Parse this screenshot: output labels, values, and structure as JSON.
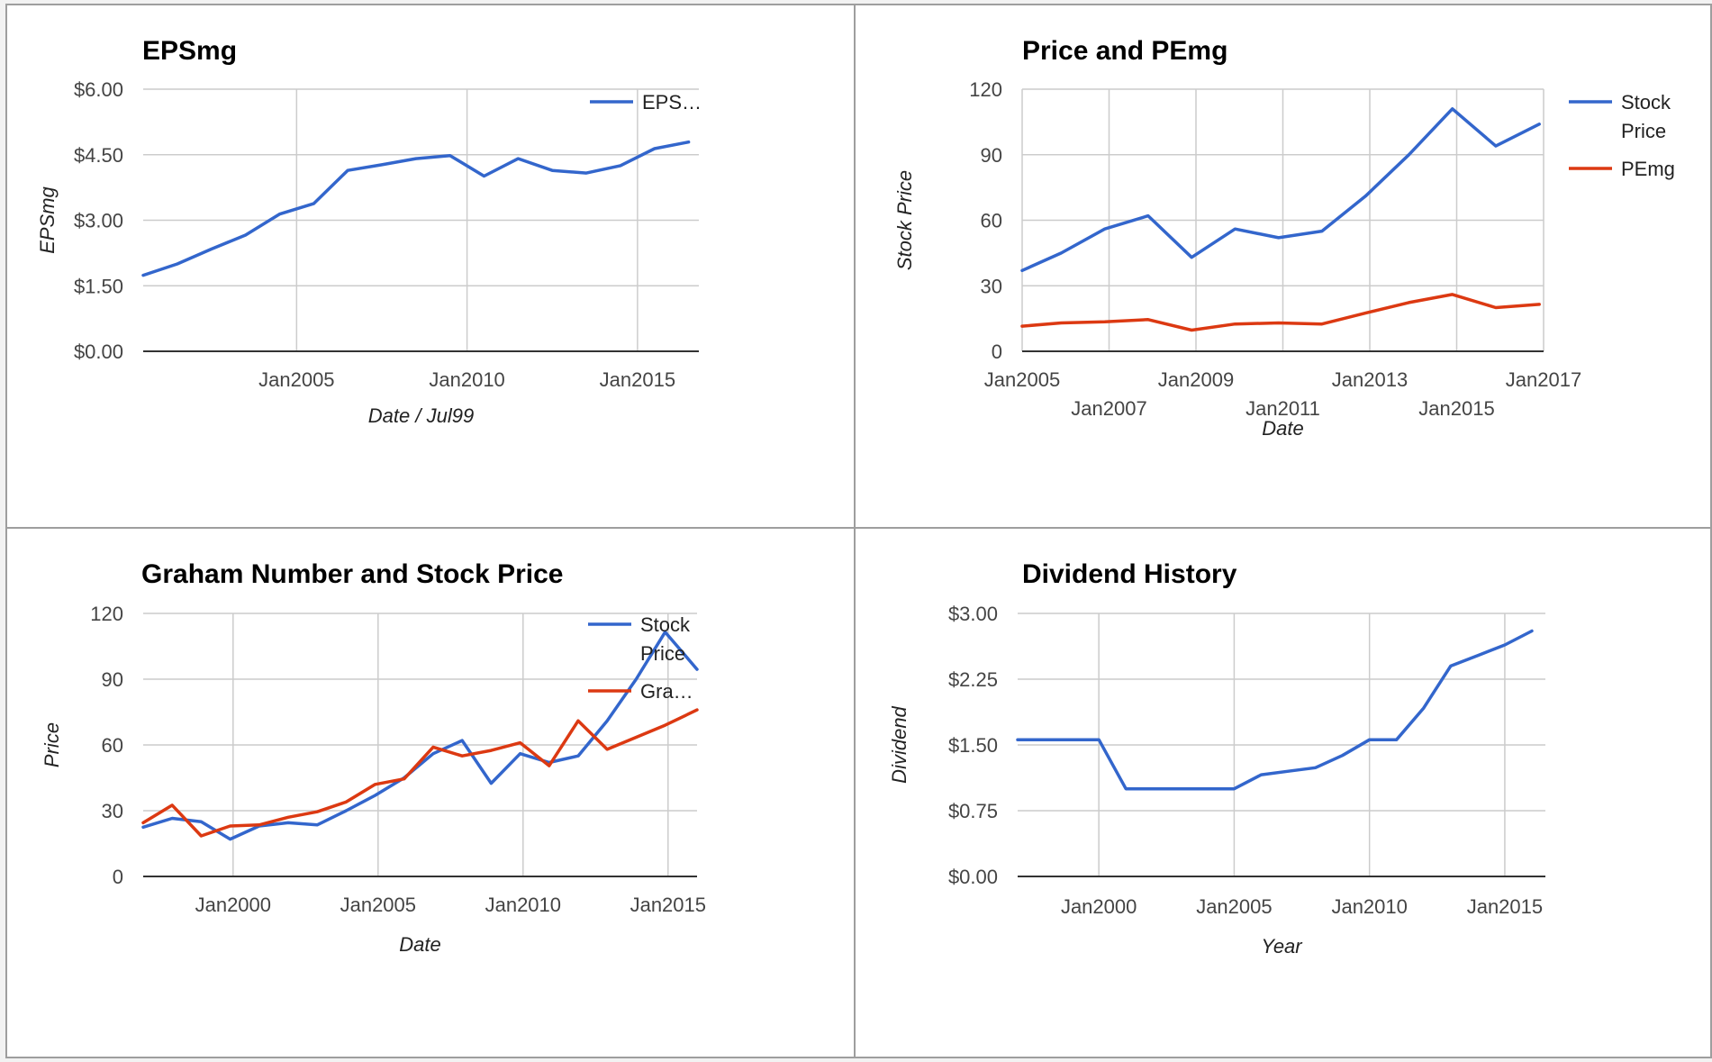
{
  "colors": {
    "blue": "#3366cc",
    "red": "#dc3912"
  },
  "chart_data": [
    {
      "type": "line",
      "title": "EPSmg",
      "xlabel": "Date / Jul99",
      "ylabel": "EPSmg",
      "xlim": [
        2000.5,
        2016.8
      ],
      "ylim": [
        0,
        6
      ],
      "x_ticks": [
        {
          "v": 2005,
          "label": "Jan2005"
        },
        {
          "v": 2010,
          "label": "Jan2010"
        },
        {
          "v": 2015,
          "label": "Jan2015"
        }
      ],
      "y_ticks": [
        {
          "v": 0,
          "label": "$0.00"
        },
        {
          "v": 1.5,
          "label": "$1.50"
        },
        {
          "v": 3,
          "label": "$3.00"
        },
        {
          "v": 4.5,
          "label": "$4.50"
        },
        {
          "v": 6,
          "label": "$6.00"
        }
      ],
      "legend_position": "right",
      "series": [
        {
          "name": "EPS…",
          "color": "#3366cc",
          "x": [
            2000.5,
            2001.5,
            2002.5,
            2003.5,
            2004.5,
            2005.5,
            2006.5,
            2007.5,
            2008.5,
            2009.5,
            2010.5,
            2011.5,
            2012.5,
            2013.5,
            2014.5,
            2015.5,
            2016.5
          ],
          "y": [
            1.74,
            2.0,
            2.34,
            2.66,
            3.14,
            3.38,
            4.14,
            4.27,
            4.41,
            4.48,
            4.01,
            4.41,
            4.14,
            4.08,
            4.25,
            4.64,
            4.79
          ]
        }
      ]
    },
    {
      "type": "line",
      "title": "Price and PEmg",
      "xlabel": "Date",
      "ylabel": "Stock Price",
      "xlim": [
        2005,
        2017
      ],
      "ylim": [
        0,
        120
      ],
      "x_ticks": [
        {
          "v": 2005,
          "label": "Jan2005",
          "row": 0
        },
        {
          "v": 2007,
          "label": "Jan2007",
          "row": 1
        },
        {
          "v": 2009,
          "label": "Jan2009",
          "row": 0
        },
        {
          "v": 2011,
          "label": "Jan2011",
          "row": 1
        },
        {
          "v": 2013,
          "label": "Jan2013",
          "row": 0
        },
        {
          "v": 2015,
          "label": "Jan2015",
          "row": 1
        },
        {
          "v": 2017,
          "label": "Jan2017",
          "row": 0
        }
      ],
      "y_ticks": [
        {
          "v": 0,
          "label": "0"
        },
        {
          "v": 30,
          "label": "30"
        },
        {
          "v": 60,
          "label": "60"
        },
        {
          "v": 90,
          "label": "90"
        },
        {
          "v": 120,
          "label": "120"
        }
      ],
      "legend_position": "right",
      "series": [
        {
          "name": "Stock Price",
          "color": "#3366cc",
          "x": [
            2005,
            2005.9,
            2006.9,
            2007.9,
            2008.9,
            2009.9,
            2010.9,
            2011.9,
            2012.9,
            2013.9,
            2014.9,
            2015.9,
            2016.9
          ],
          "y": [
            37,
            45,
            56,
            62,
            43,
            56,
            52,
            55,
            71,
            90,
            111,
            94,
            104
          ]
        },
        {
          "name": "PEmg",
          "color": "#dc3912",
          "x": [
            2005,
            2005.9,
            2006.9,
            2007.9,
            2008.9,
            2009.9,
            2010.9,
            2011.9,
            2012.9,
            2013.9,
            2014.9,
            2015.9,
            2016.9
          ],
          "y": [
            11.5,
            13,
            13.5,
            14.5,
            9.7,
            12.5,
            13,
            12.5,
            17.5,
            22.3,
            26,
            20,
            21.5
          ]
        }
      ]
    },
    {
      "type": "line",
      "title": "Graham Number and Stock Price",
      "xlabel": "Date",
      "ylabel": "Price",
      "xlim": [
        1996.9,
        2016
      ],
      "ylim": [
        0,
        120
      ],
      "x_ticks": [
        {
          "v": 2000,
          "label": "Jan2000"
        },
        {
          "v": 2005,
          "label": "Jan2005"
        },
        {
          "v": 2010,
          "label": "Jan2010"
        },
        {
          "v": 2015,
          "label": "Jan2015"
        }
      ],
      "y_ticks": [
        {
          "v": 0,
          "label": "0"
        },
        {
          "v": 30,
          "label": "30"
        },
        {
          "v": 60,
          "label": "60"
        },
        {
          "v": 90,
          "label": "90"
        },
        {
          "v": 120,
          "label": "120"
        }
      ],
      "legend_position": "right",
      "series": [
        {
          "name": "Stock Price",
          "color": "#3366cc",
          "x": [
            1996.9,
            1997.9,
            1998.9,
            1999.9,
            2000.9,
            2001.9,
            2002.9,
            2003.9,
            2004.9,
            2005.9,
            2006.9,
            2007.9,
            2008.9,
            2009.9,
            2010.9,
            2011.9,
            2012.9,
            2013.9,
            2014.9,
            2016
          ],
          "y": [
            22.5,
            26.5,
            25,
            17,
            23,
            24.5,
            23.5,
            30,
            37,
            45,
            56,
            62,
            42.5,
            56,
            52,
            55,
            71,
            90,
            111.5,
            94.5
          ]
        },
        {
          "name": "Gra…",
          "color": "#dc3912",
          "x": [
            1996.9,
            1997.9,
            1998.9,
            1999.9,
            2000.9,
            2001.9,
            2002.9,
            2003.9,
            2004.9,
            2005.9,
            2006.9,
            2007.9,
            2008.9,
            2009.9,
            2010.9,
            2011.9,
            2012.9,
            2013.9,
            2014.9,
            2016
          ],
          "y": [
            24.5,
            32.5,
            18.5,
            23,
            23.5,
            27,
            29.5,
            34,
            42,
            44.5,
            59,
            55,
            57.5,
            61,
            50.5,
            71,
            58,
            63.5,
            69,
            76
          ]
        }
      ]
    },
    {
      "type": "line",
      "title": "Dividend History",
      "xlabel": "Year",
      "ylabel": "Dividend",
      "xlim": [
        1997,
        2016.5
      ],
      "ylim": [
        0,
        3
      ],
      "x_ticks": [
        {
          "v": 2000,
          "label": "Jan2000"
        },
        {
          "v": 2005,
          "label": "Jan2005"
        },
        {
          "v": 2010,
          "label": "Jan2010"
        },
        {
          "v": 2015,
          "label": "Jan2015"
        }
      ],
      "y_ticks": [
        {
          "v": 0,
          "label": "$0.00"
        },
        {
          "v": 0.75,
          "label": "$0.75"
        },
        {
          "v": 1.5,
          "label": "$1.50"
        },
        {
          "v": 2.25,
          "label": "$2.25"
        },
        {
          "v": 3,
          "label": "$3.00"
        }
      ],
      "legend_position": "none",
      "series": [
        {
          "color": "#3366cc",
          "x": [
            1997,
            1998,
            1999,
            2000,
            2001,
            2002,
            2003,
            2004,
            2005,
            2006,
            2007,
            2008,
            2009,
            2010,
            2011,
            2012,
            2013,
            2014,
            2015,
            2016
          ],
          "y": [
            1.56,
            1.56,
            1.56,
            1.56,
            1.0,
            1.0,
            1.0,
            1.0,
            1.0,
            1.16,
            1.2,
            1.24,
            1.38,
            1.56,
            1.56,
            1.92,
            2.4,
            2.52,
            2.64,
            2.8
          ]
        }
      ]
    }
  ]
}
